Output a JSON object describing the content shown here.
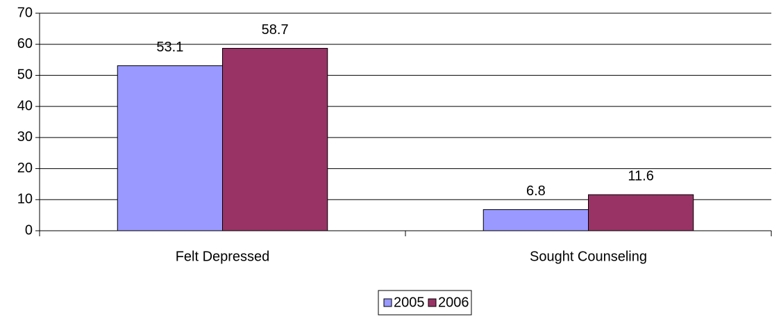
{
  "chart_data": {
    "type": "bar",
    "categories": [
      "Felt Depressed",
      "Sought Counseling"
    ],
    "series": [
      {
        "name": "2005",
        "color": "#9999ff",
        "values": [
          53.1,
          6.8
        ]
      },
      {
        "name": "2006",
        "color": "#993366",
        "values": [
          58.7,
          11.6
        ]
      }
    ],
    "ylim": [
      0,
      70
    ],
    "yticks": [
      0,
      10,
      20,
      30,
      40,
      50,
      60,
      70
    ],
    "grid": true,
    "legend": "bottom"
  }
}
